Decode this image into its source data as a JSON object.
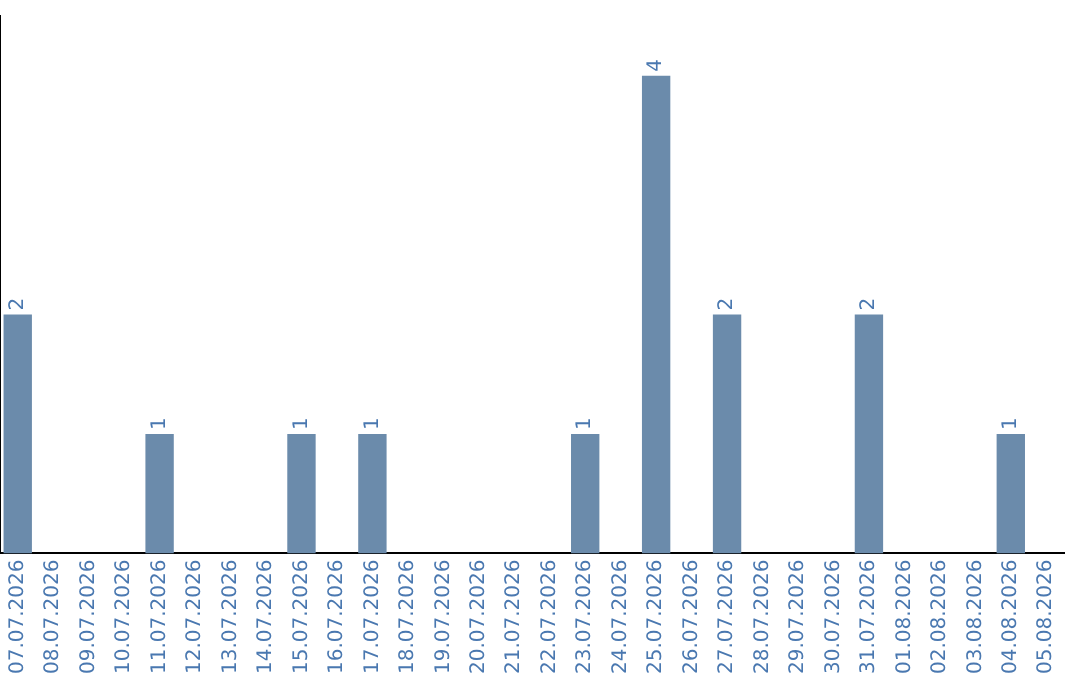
{
  "chart_data": {
    "type": "bar",
    "categories": [
      "07.07.2026",
      "08.07.2026",
      "09.07.2026",
      "10.07.2026",
      "11.07.2026",
      "12.07.2026",
      "13.07.2026",
      "14.07.2026",
      "15.07.2026",
      "16.07.2026",
      "17.07.2026",
      "18.07.2026",
      "19.07.2026",
      "20.07.2026",
      "21.07.2026",
      "22.07.2026",
      "23.07.2026",
      "24.07.2026",
      "25.07.2026",
      "26.07.2026",
      "27.07.2026",
      "28.07.2026",
      "29.07.2026",
      "30.07.2026",
      "31.07.2026",
      "01.08.2026",
      "02.08.2026",
      "03.08.2026",
      "04.08.2026",
      "05.08.2026"
    ],
    "values": [
      2,
      0,
      0,
      0,
      1,
      0,
      0,
      0,
      1,
      0,
      1,
      0,
      0,
      0,
      0,
      0,
      1,
      0,
      4,
      0,
      2,
      0,
      0,
      0,
      2,
      0,
      0,
      0,
      1,
      0
    ],
    "value_labels": [
      "2",
      null,
      null,
      null,
      "1",
      null,
      null,
      null,
      "1",
      null,
      "1",
      null,
      null,
      null,
      null,
      null,
      "1",
      null,
      "4",
      null,
      "2",
      null,
      null,
      null,
      "2",
      null,
      null,
      null,
      "1",
      null
    ],
    "color": "#6b8bab",
    "tick_labels": "x",
    "grid": false,
    "legend": false
  }
}
